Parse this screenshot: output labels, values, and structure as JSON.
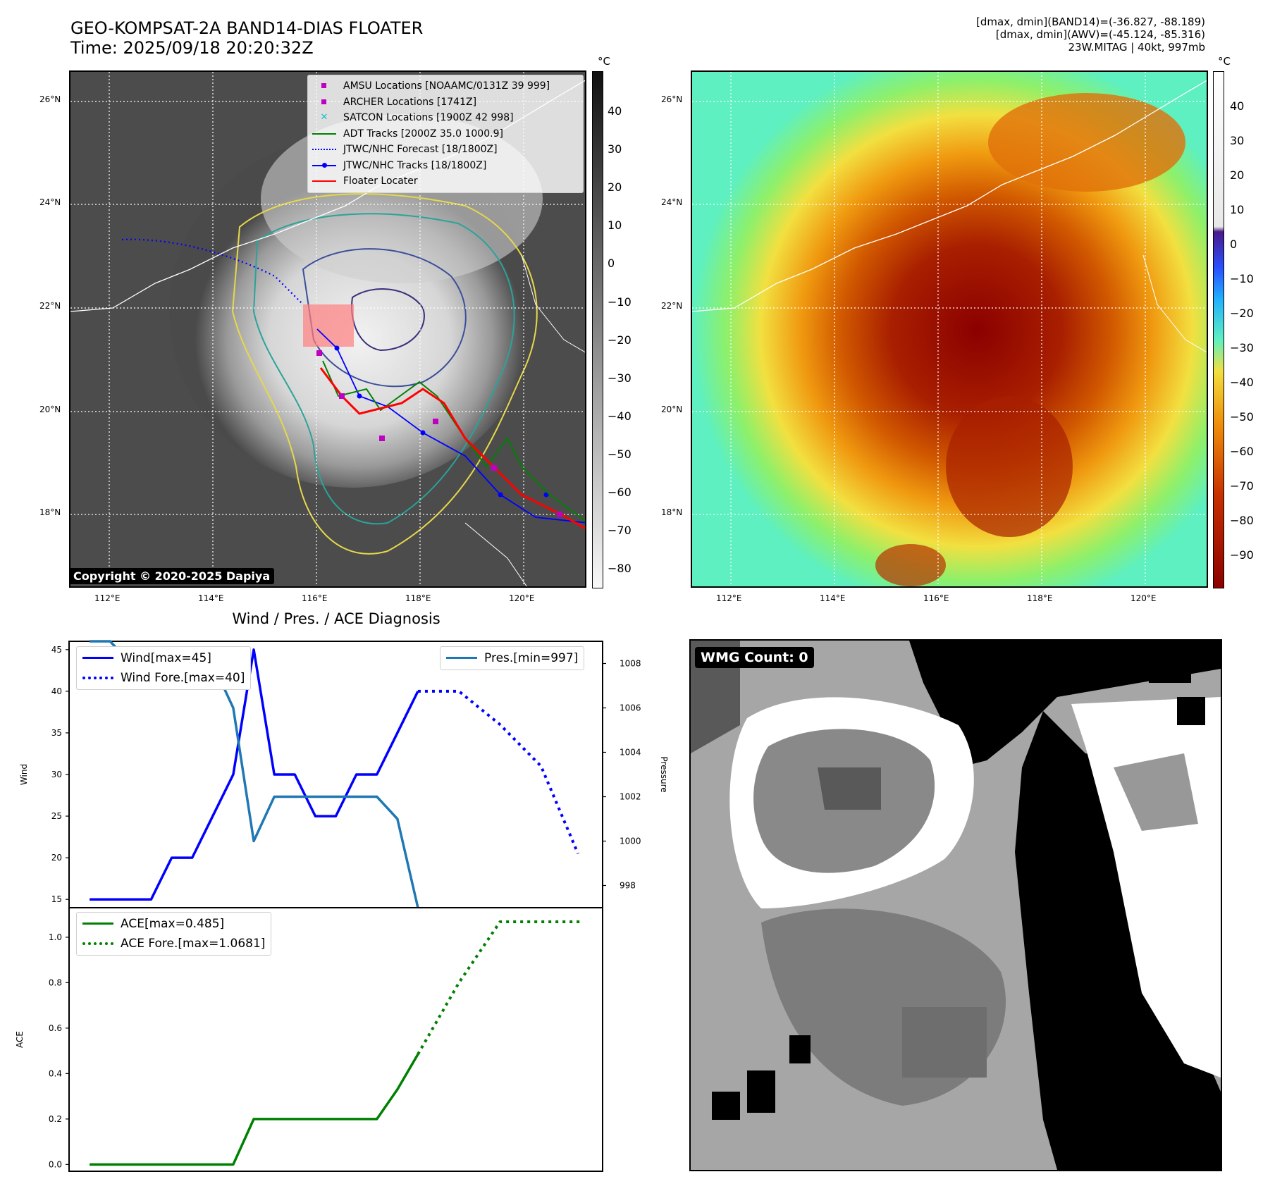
{
  "header": {
    "title_line1": "GEO-KOMPSAT-2A BAND14-DIAS FLOATER",
    "title_line2": "Time: 2025/09/18 20:20:32Z",
    "stats_line1": "[dmax, dmin](BAND14)=(-36.827, -88.189)",
    "stats_line2": "[dmax, dmin](AWV)=(-45.124, -85.316)",
    "stats_line3": "23W.MITAG | 40kt, 997mb"
  },
  "map": {
    "lat_ticks": [
      "26°N",
      "24°N",
      "22°N",
      "20°N",
      "18°N"
    ],
    "lon_ticks": [
      "112°E",
      "114°E",
      "116°E",
      "118°E",
      "120°E"
    ],
    "colorbar_unit": "°C",
    "colorbar_left_ticks": [
      "40",
      "30",
      "20",
      "10",
      "0",
      "−10",
      "−20",
      "−30",
      "−40",
      "−50",
      "−60",
      "−70",
      "−80"
    ],
    "colorbar_right_ticks": [
      "40",
      "30",
      "20",
      "10",
      "0",
      "−10",
      "−20",
      "−30",
      "−40",
      "−50",
      "−60",
      "−70",
      "−80",
      "−90"
    ],
    "copyright": "Copyright © 2020-2025 Dapiya",
    "legend": [
      {
        "label": "AMSU Locations [NOAAMC/0131Z 39 999]",
        "color": "#c000c0",
        "kind": "square"
      },
      {
        "label": "ARCHER Locations [1741Z]",
        "color": "#c000c0",
        "kind": "square"
      },
      {
        "label": "SATCON Locations [1900Z 42 998]",
        "color": "#17becf",
        "kind": "x"
      },
      {
        "label": "ADT Tracks [2000Z 35.0 1000.9]",
        "color": "#008000",
        "kind": "line"
      },
      {
        "label": "JTWC/NHC Forecast [18/1800Z]",
        "color": "#0000ff",
        "kind": "dotted"
      },
      {
        "label": "JTWC/NHC Tracks [18/1800Z]",
        "color": "#0000ff",
        "kind": "line-dot"
      },
      {
        "label": "Floater Locater",
        "color": "#ff0000",
        "kind": "line"
      }
    ],
    "colors": {
      "track": "#0000ff",
      "adt": "#008000",
      "floater": "#ff0000",
      "marker": "#c000c0"
    }
  },
  "wmg": {
    "label": "WMG Count: 0"
  },
  "chart_data": [
    {
      "type": "line",
      "title": "Wind / Pres. / ACE Diagnosis",
      "ylabel": "Wind",
      "ylabel_right": "Pressure",
      "ylim": [
        14,
        46
      ],
      "ylim_right": [
        997,
        1009
      ],
      "yticks": [
        15,
        20,
        25,
        30,
        35,
        40,
        45
      ],
      "yticks_right": [
        998,
        1000,
        1002,
        1004,
        1006,
        1008
      ],
      "x": [
        0,
        1,
        2,
        3,
        4,
        5,
        6,
        7,
        8,
        9,
        10,
        11,
        12,
        13,
        14,
        15,
        16,
        17,
        18,
        19,
        20,
        21,
        22,
        23
      ],
      "series": [
        {
          "name": "Wind[max=45]",
          "color": "#0000ff",
          "style": "solid",
          "x": [
            0,
            1,
            2,
            3,
            4,
            5,
            6,
            7,
            8,
            9,
            10,
            11,
            12,
            13,
            14,
            15,
            16
          ],
          "values": [
            15,
            15,
            15,
            15,
            20,
            20,
            25,
            30,
            45,
            30,
            30,
            25,
            25,
            30,
            30,
            35,
            40
          ]
        },
        {
          "name": "Wind Fore.[max=40]",
          "color": "#0000ff",
          "style": "dotted",
          "x": [
            16,
            18,
            20,
            22,
            23.8
          ],
          "values": [
            40,
            40,
            36,
            31,
            20.5
          ]
        },
        {
          "name": "Pres.[min=997]",
          "color": "#1f77b4",
          "style": "solid",
          "axis": "right",
          "x": [
            0,
            1,
            2,
            3,
            4,
            5,
            6,
            7,
            8,
            9,
            10,
            11,
            12,
            13,
            14,
            15,
            16
          ],
          "values": [
            1009,
            1009,
            1008,
            1008,
            1008,
            1008,
            1008,
            1006,
            1000,
            1002,
            1002,
            1002,
            1002,
            1002,
            1002,
            1001,
            997
          ]
        }
      ]
    },
    {
      "type": "line",
      "ylabel": "ACE",
      "ylim": [
        -0.03,
        1.13
      ],
      "yticks": [
        0.0,
        0.2,
        0.4,
        0.6,
        0.8,
        1.0
      ],
      "series": [
        {
          "name": "ACE[max=0.485]",
          "color": "#008000",
          "style": "solid",
          "x": [
            0,
            1,
            2,
            3,
            4,
            5,
            6,
            7,
            8,
            9,
            10,
            11,
            12,
            13,
            14,
            15,
            16
          ],
          "values": [
            0,
            0,
            0,
            0,
            0,
            0,
            0,
            0,
            0.2,
            0.2,
            0.2,
            0.2,
            0.2,
            0.2,
            0.2,
            0.33,
            0.485
          ]
        },
        {
          "name": "ACE Fore.[max=1.0681]",
          "color": "#008000",
          "style": "dotted",
          "x": [
            16,
            18,
            20,
            21,
            22,
            24
          ],
          "values": [
            0.485,
            0.8,
            1.068,
            1.068,
            1.068,
            1.068
          ]
        }
      ]
    }
  ]
}
